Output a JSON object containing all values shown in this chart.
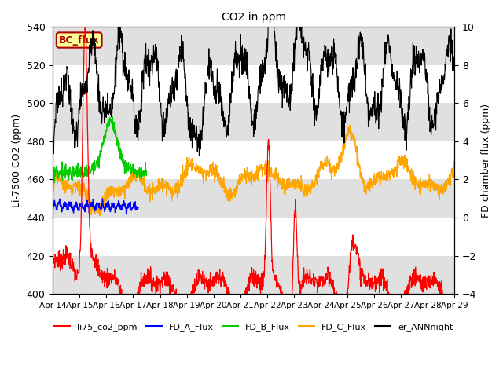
{
  "title": "CO2 in ppm",
  "ylabel_left": "Li-7500 CO2 (ppm)",
  "ylabel_right": "FD chamber flux (ppm)",
  "ylim_left": [
    400,
    540
  ],
  "ylim_right": [
    -4,
    10
  ],
  "yticks_left": [
    400,
    420,
    440,
    460,
    480,
    500,
    520,
    540
  ],
  "yticks_right": [
    -4,
    -2,
    0,
    2,
    4,
    6,
    8,
    10
  ],
  "xticklabels": [
    "Apr 14",
    "Apr 15",
    "Apr 16",
    "Apr 17",
    "Apr 18",
    "Apr 19",
    "Apr 20",
    "Apr 21",
    "Apr 22",
    "Apr 23",
    "Apr 24",
    "Apr 25",
    "Apr 26",
    "Apr 27",
    "Apr 28",
    "Apr 29"
  ],
  "colors": {
    "li75": "#ff0000",
    "FD_A": "#0000ff",
    "FD_B": "#00cc00",
    "FD_C": "#ffa500",
    "er_ANN": "#000000"
  },
  "legend_labels": [
    "li75_co2_ppm",
    "FD_A_Flux",
    "FD_B_Flux",
    "FD_C_Flux",
    "er_ANNnight"
  ],
  "bc_flux_label": "BC_flux",
  "bc_flux_color": "#aa0000",
  "bc_flux_bg": "#ffff99",
  "background_bands": [
    {
      "ymin": 400,
      "ymax": 420,
      "color": "#e0e0e0"
    },
    {
      "ymin": 440,
      "ymax": 460,
      "color": "#e0e0e0"
    },
    {
      "ymin": 480,
      "ymax": 500,
      "color": "#e0e0e0"
    },
    {
      "ymin": 520,
      "ymax": 540,
      "color": "#e0e0e0"
    }
  ],
  "figsize": [
    6.4,
    4.8
  ],
  "dpi": 100
}
